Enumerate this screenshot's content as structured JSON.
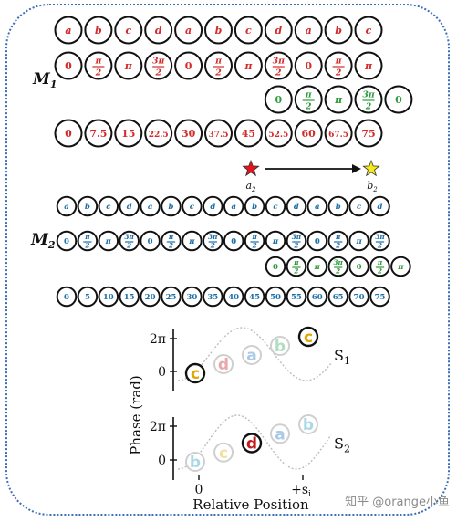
{
  "diagram": {
    "m1_label": "M",
    "m1_sub": "1",
    "m2_label": "M",
    "m2_sub": "2",
    "star_a_label": "a",
    "star_a_sub": "2",
    "star_b_label": "b",
    "star_b_sub": "2",
    "m1_rows": [
      {
        "color": "#d32a2a",
        "items": [
          "a",
          "b",
          "c",
          "d",
          "a",
          "b",
          "c",
          "d",
          "a",
          "b",
          "c"
        ]
      },
      {
        "color": "#d32a2a",
        "items": [
          "0",
          "π/2",
          "π",
          "3π/2",
          "0",
          "π/2",
          "π",
          "3π/2",
          "0",
          "π/2",
          "π"
        ]
      },
      {
        "color": "#2e9b3a",
        "start": 7,
        "items": [
          "0",
          "π/2",
          "π",
          "3π/2",
          "0"
        ]
      },
      {
        "color": "#d32a2a",
        "items": [
          "0",
          "7.5",
          "15",
          "22.5",
          "30",
          "37.5",
          "45",
          "52.5",
          "60",
          "67.5",
          "75"
        ]
      }
    ],
    "m2_rows": [
      {
        "color": "#1c6fa8",
        "items": [
          "a",
          "b",
          "c",
          "d",
          "a",
          "b",
          "c",
          "d",
          "a",
          "b",
          "c",
          "d",
          "a",
          "b",
          "c",
          "d"
        ]
      },
      {
        "color": "#1c6fa8",
        "items": [
          "0",
          "π/2",
          "π",
          "3π/2",
          "0",
          "π/2",
          "π",
          "3π/2",
          "0",
          "π/2",
          "π",
          "3π/2",
          "0",
          "π/2",
          "π",
          "3π/2"
        ]
      },
      {
        "color": "#2e9b3a",
        "start": 10,
        "items": [
          "0",
          "π/2",
          "π",
          "3π/2",
          "0",
          "π/2",
          "π"
        ]
      },
      {
        "color": "#1c6fa8",
        "items": [
          "0",
          "5",
          "10",
          "15",
          "20",
          "25",
          "30",
          "35",
          "40",
          "45",
          "50",
          "55",
          "60",
          "65",
          "70",
          "75"
        ]
      }
    ]
  },
  "plots": {
    "y_label": "Phase (rad)",
    "x_label": "Relative Position",
    "tick_2pi": "2π",
    "tick_0": "0",
    "x_tick_0": "0",
    "x_tick_s": "+s",
    "x_tick_s_sub": "i",
    "s1_label": "S",
    "s1_sub": "1",
    "s2_label": "S",
    "s2_sub": "2",
    "s1_points": [
      {
        "letter": "c",
        "color": "#e2a600",
        "highlight": true
      },
      {
        "letter": "d",
        "color": "#e8a9a9",
        "highlight": false
      },
      {
        "letter": "a",
        "color": "#a9c9e6",
        "highlight": false
      },
      {
        "letter": "b",
        "color": "#b0dcc1",
        "highlight": false
      },
      {
        "letter": "c",
        "color": "#e2a600",
        "highlight": true
      }
    ],
    "s2_points": [
      {
        "letter": "b",
        "color": "#a9d9e6",
        "highlight": false
      },
      {
        "letter": "c",
        "color": "#f2dfa8",
        "highlight": false
      },
      {
        "letter": "d",
        "color": "#c41d1d",
        "highlight": true
      },
      {
        "letter": "a",
        "color": "#a9c9e6",
        "highlight": false
      },
      {
        "letter": "b",
        "color": "#a9d9e6",
        "highlight": false
      }
    ]
  },
  "watermark": "知乎 @orange小鱼"
}
